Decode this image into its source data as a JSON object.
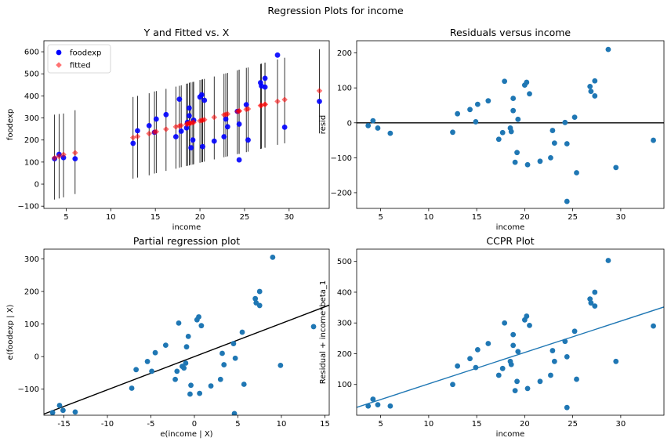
{
  "figure": {
    "suptitle": "Regression Plots for income"
  },
  "colors": {
    "blue": "#0000ff",
    "red": "#ff0000",
    "steel": "#1f77b4",
    "black": "#000000"
  },
  "chart_data": [
    {
      "type": "scatter",
      "title": "Y and Fitted vs. X",
      "xlabel": "income",
      "ylabel": "foodexp",
      "xlim": [
        2.5,
        34.5
      ],
      "ylim": [
        -110,
        650
      ],
      "xticks": [
        5,
        10,
        15,
        20,
        25,
        30
      ],
      "yticks": [
        -100,
        0,
        100,
        200,
        300,
        400,
        500,
        600
      ],
      "legend": {
        "position": "upper-left",
        "entries": [
          "foodexp",
          "fitted"
        ]
      },
      "series": [
        {
          "name": "foodexp",
          "marker": "circle",
          "color": "#0000ff",
          "points": [
            [
              3.7,
              115
            ],
            [
              4.2,
              135
            ],
            [
              4.7,
              120
            ],
            [
              6.0,
              115
            ],
            [
              12.5,
              185
            ],
            [
              13.0,
              242
            ],
            [
              14.3,
              265
            ],
            [
              14.9,
              235
            ],
            [
              15.1,
              295
            ],
            [
              16.2,
              315
            ],
            [
              17.3,
              215
            ],
            [
              17.7,
              385
            ],
            [
              17.9,
              240
            ],
            [
              18.5,
              255
            ],
            [
              18.6,
              280
            ],
            [
              18.8,
              345
            ],
            [
              18.8,
              310
            ],
            [
              19.0,
              165
            ],
            [
              19.2,
              200
            ],
            [
              19.3,
              290
            ],
            [
              20.0,
              395
            ],
            [
              20.2,
              405
            ],
            [
              20.3,
              170
            ],
            [
              20.5,
              380
            ],
            [
              21.6,
              195
            ],
            [
              22.7,
              215
            ],
            [
              22.9,
              295
            ],
            [
              23.1,
              260
            ],
            [
              24.2,
              330
            ],
            [
              24.4,
              110
            ],
            [
              24.4,
              272
            ],
            [
              25.2,
              360
            ],
            [
              25.4,
              200
            ],
            [
              26.8,
              460
            ],
            [
              26.9,
              445
            ],
            [
              27.3,
              480
            ],
            [
              27.3,
              440
            ],
            [
              28.7,
              585
            ],
            [
              29.5,
              258
            ],
            [
              33.4,
              375
            ]
          ]
        },
        {
          "name": "fitted",
          "marker": "diamond",
          "color": "#ff0000",
          "points": [
            [
              3.7,
              119
            ],
            [
              4.2,
              126
            ],
            [
              4.7,
              134
            ],
            [
              6.0,
              142
            ],
            [
              12.5,
              211
            ],
            [
              13.0,
              216
            ],
            [
              14.3,
              229
            ],
            [
              14.9,
              236
            ],
            [
              15.1,
              238
            ],
            [
              16.2,
              249
            ],
            [
              17.3,
              260
            ],
            [
              17.7,
              264
            ],
            [
              17.9,
              266
            ],
            [
              18.5,
              272
            ],
            [
              18.6,
              273
            ],
            [
              18.8,
              275
            ],
            [
              18.8,
              276
            ],
            [
              19.0,
              277
            ],
            [
              19.2,
              279
            ],
            [
              19.3,
              280
            ],
            [
              20.0,
              287
            ],
            [
              20.2,
              289
            ],
            [
              20.3,
              290
            ],
            [
              20.5,
              292
            ],
            [
              21.6,
              303
            ],
            [
              22.7,
              314
            ],
            [
              22.9,
              316
            ],
            [
              23.1,
              318
            ],
            [
              24.2,
              329
            ],
            [
              24.4,
              331
            ],
            [
              24.4,
              332
            ],
            [
              25.2,
              339
            ],
            [
              25.4,
              341
            ],
            [
              26.8,
              356
            ],
            [
              26.9,
              357
            ],
            [
              27.3,
              361
            ],
            [
              27.3,
              362
            ],
            [
              28.7,
              375
            ],
            [
              29.5,
              383
            ],
            [
              33.4,
              423
            ]
          ]
        }
      ],
      "prediction_intervals": [
        [
          3.7,
          -70,
          315
        ],
        [
          4.2,
          -65,
          318
        ],
        [
          4.7,
          -60,
          320
        ],
        [
          6.0,
          -45,
          335
        ],
        [
          12.5,
          25,
          395
        ],
        [
          13.0,
          30,
          400
        ],
        [
          14.3,
          40,
          412
        ],
        [
          14.9,
          48,
          420
        ],
        [
          15.1,
          50,
          422
        ],
        [
          16.2,
          60,
          432
        ],
        [
          17.3,
          70,
          442
        ],
        [
          17.7,
          75,
          446
        ],
        [
          17.9,
          77,
          448
        ],
        [
          18.5,
          82,
          455
        ],
        [
          18.6,
          83,
          456
        ],
        [
          18.8,
          85,
          458
        ],
        [
          18.8,
          86,
          460
        ],
        [
          19.0,
          87,
          461
        ],
        [
          19.2,
          89,
          463
        ],
        [
          19.3,
          90,
          464
        ],
        [
          20.0,
          97,
          472
        ],
        [
          20.2,
          99,
          474
        ],
        [
          20.3,
          100,
          475
        ],
        [
          20.5,
          102,
          477
        ],
        [
          21.6,
          112,
          488
        ],
        [
          22.7,
          122,
          500
        ],
        [
          22.9,
          124,
          502
        ],
        [
          23.1,
          126,
          504
        ],
        [
          24.2,
          136,
          516
        ],
        [
          24.4,
          137,
          518
        ],
        [
          24.4,
          138,
          519
        ],
        [
          25.2,
          145,
          527
        ],
        [
          25.4,
          147,
          529
        ],
        [
          26.8,
          160,
          545
        ],
        [
          26.9,
          161,
          546
        ],
        [
          27.3,
          165,
          550
        ],
        [
          27.3,
          166,
          551
        ],
        [
          28.7,
          178,
          565
        ],
        [
          29.5,
          185,
          573
        ],
        [
          33.4,
          230,
          612
        ]
      ]
    },
    {
      "type": "scatter",
      "title": "Residuals versus income",
      "xlabel": "income",
      "ylabel": "resid",
      "xlim": [
        2.5,
        34.5
      ],
      "ylim": [
        -245,
        235
      ],
      "xticks": [
        5,
        10,
        15,
        20,
        25,
        30
      ],
      "yticks": [
        -200,
        -100,
        0,
        100,
        200
      ],
      "hline": 0,
      "points": [
        [
          3.7,
          -8
        ],
        [
          4.2,
          6
        ],
        [
          4.7,
          -15
        ],
        [
          6.0,
          -30
        ],
        [
          12.5,
          -27
        ],
        [
          13.0,
          26
        ],
        [
          14.3,
          38
        ],
        [
          14.9,
          3
        ],
        [
          15.1,
          53
        ],
        [
          16.2,
          63
        ],
        [
          17.3,
          -47
        ],
        [
          17.7,
          -28
        ],
        [
          17.9,
          119
        ],
        [
          18.5,
          -15
        ],
        [
          18.6,
          -25
        ],
        [
          18.8,
          70
        ],
        [
          18.8,
          35
        ],
        [
          19.0,
          -113
        ],
        [
          19.2,
          -85
        ],
        [
          19.3,
          10
        ],
        [
          20.0,
          108
        ],
        [
          20.2,
          116
        ],
        [
          20.3,
          -120
        ],
        [
          20.5,
          83
        ],
        [
          21.6,
          -110
        ],
        [
          22.7,
          -100
        ],
        [
          22.9,
          -22
        ],
        [
          23.1,
          -58
        ],
        [
          24.2,
          1
        ],
        [
          24.4,
          -225
        ],
        [
          24.4,
          -60
        ],
        [
          25.2,
          16
        ],
        [
          25.4,
          -143
        ],
        [
          26.8,
          104
        ],
        [
          26.9,
          90
        ],
        [
          27.3,
          120
        ],
        [
          27.3,
          77
        ],
        [
          28.7,
          210
        ],
        [
          29.5,
          -128
        ],
        [
          33.4,
          -50
        ]
      ]
    },
    {
      "type": "scatter",
      "title": "Partial regression plot",
      "xlabel": "e(income | X)",
      "ylabel": "e(foodexp | X)",
      "xlim": [
        -17.3,
        15.5
      ],
      "ylim": [
        -180,
        330
      ],
      "xticks": [
        -15,
        -10,
        -5,
        0,
        5,
        10,
        15
      ],
      "yticks": [
        -100,
        0,
        100,
        200,
        300
      ],
      "fit_line": {
        "slope": 10.2,
        "intercept": 0
      },
      "points": [
        [
          -16.3,
          -172
        ],
        [
          -15.5,
          -150
        ],
        [
          -15.1,
          -165
        ],
        [
          -13.7,
          -170
        ],
        [
          -7.2,
          -97
        ],
        [
          -6.7,
          -40
        ],
        [
          -5.4,
          -15
        ],
        [
          -4.9,
          -45
        ],
        [
          -4.5,
          12
        ],
        [
          -3.3,
          35
        ],
        [
          -2.2,
          -70
        ],
        [
          -1.8,
          103
        ],
        [
          -2.0,
          -45
        ],
        [
          -1.4,
          -30
        ],
        [
          -1.2,
          -35
        ],
        [
          -1.0,
          -20
        ],
        [
          -0.9,
          30
        ],
        [
          -0.7,
          62
        ],
        [
          -0.5,
          -115
        ],
        [
          -0.4,
          -88
        ],
        [
          0.3,
          113
        ],
        [
          0.5,
          122
        ],
        [
          0.6,
          -113
        ],
        [
          0.8,
          95
        ],
        [
          1.9,
          -90
        ],
        [
          3.0,
          -70
        ],
        [
          3.2,
          10
        ],
        [
          3.4,
          -25
        ],
        [
          4.5,
          40
        ],
        [
          4.6,
          -175
        ],
        [
          4.7,
          -5
        ],
        [
          5.5,
          75
        ],
        [
          5.7,
          -85
        ],
        [
          7.0,
          178
        ],
        [
          7.1,
          165
        ],
        [
          7.5,
          200
        ],
        [
          7.5,
          157
        ],
        [
          9.0,
          305
        ],
        [
          9.9,
          -27
        ],
        [
          13.7,
          92
        ]
      ]
    },
    {
      "type": "scatter",
      "title": "CCPR Plot",
      "xlabel": "income",
      "ylabel": "Residual + income*beta_1",
      "xlim": [
        2.5,
        34.5
      ],
      "ylim": [
        0,
        540
      ],
      "xticks": [
        5,
        10,
        15,
        20,
        25,
        30
      ],
      "yticks": [
        100,
        200,
        300,
        400,
        500
      ],
      "fit_line": {
        "slope": 10.2,
        "intercept": 0
      },
      "points": [
        [
          3.7,
          30
        ],
        [
          4.2,
          52
        ],
        [
          4.7,
          34
        ],
        [
          6.0,
          30
        ],
        [
          12.5,
          100
        ],
        [
          13.0,
          160
        ],
        [
          14.3,
          184
        ],
        [
          14.9,
          155
        ],
        [
          15.1,
          213
        ],
        [
          16.2,
          233
        ],
        [
          17.3,
          130
        ],
        [
          17.7,
          152
        ],
        [
          17.9,
          300
        ],
        [
          18.5,
          175
        ],
        [
          18.6,
          165
        ],
        [
          18.8,
          262
        ],
        [
          18.8,
          227
        ],
        [
          19.0,
          80
        ],
        [
          19.2,
          110
        ],
        [
          19.3,
          207
        ],
        [
          20.0,
          310
        ],
        [
          20.2,
          322
        ],
        [
          20.3,
          87
        ],
        [
          20.5,
          292
        ],
        [
          21.6,
          110
        ],
        [
          22.7,
          130
        ],
        [
          22.9,
          210
        ],
        [
          23.1,
          175
        ],
        [
          24.2,
          240
        ],
        [
          24.4,
          25
        ],
        [
          24.4,
          190
        ],
        [
          25.2,
          273
        ],
        [
          25.4,
          117
        ],
        [
          26.8,
          378
        ],
        [
          26.9,
          365
        ],
        [
          27.3,
          400
        ],
        [
          27.3,
          355
        ],
        [
          28.7,
          503
        ],
        [
          29.5,
          175
        ],
        [
          33.4,
          290
        ]
      ]
    }
  ]
}
